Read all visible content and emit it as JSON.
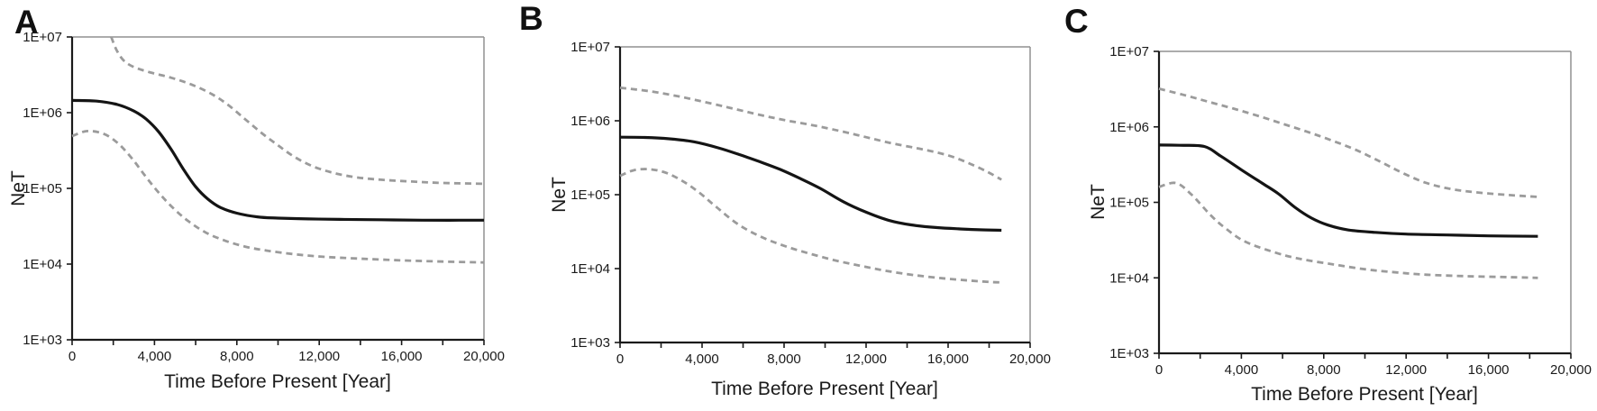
{
  "colors": {
    "background": "#ffffff",
    "median_line": "#141414",
    "ci_line": "#9b9b9b",
    "axis": "#1a1a1a",
    "frame": "#909090",
    "text": "#1a1a1a"
  },
  "chart_data": [
    {
      "type": "line",
      "panel_label": "A",
      "xlabel": "Time Before Present [Year]",
      "ylabel": "NeT",
      "xlim": [
        0,
        20000
      ],
      "ylim": [
        1000,
        10000000
      ],
      "yscale": "log",
      "grid": false,
      "legend": null,
      "x_tick_values": [
        0,
        4000,
        8000,
        12000,
        16000,
        20000
      ],
      "x_tick_labels": [
        "0",
        "4,000",
        "8,000",
        "12,000",
        "16,000",
        "20,000"
      ],
      "x_minor_tick_step": 2000,
      "y_tick_values": [
        1000,
        10000,
        100000,
        1000000,
        10000000
      ],
      "y_tick_labels": [
        "1E+03",
        "1E+04",
        "1E+05",
        "1E+06",
        "1E+07"
      ],
      "series": [
        {
          "name": "median",
          "style": "solid",
          "color": "#141414",
          "width": 3.2,
          "points": [
            [
              0,
              1450000
            ],
            [
              1200,
              1420000
            ],
            [
              2200,
              1280000
            ],
            [
              3000,
              1050000
            ],
            [
              3600,
              820000
            ],
            [
              4200,
              560000
            ],
            [
              4800,
              330000
            ],
            [
              5400,
              180000
            ],
            [
              6000,
              105000
            ],
            [
              6600,
              72000
            ],
            [
              7200,
              56000
            ],
            [
              8000,
              47000
            ],
            [
              9000,
              42000
            ],
            [
              10000,
              40500
            ],
            [
              11500,
              39500
            ],
            [
              13000,
              39000
            ],
            [
              15000,
              38500
            ],
            [
              17000,
              38000
            ],
            [
              20000,
              38000
            ]
          ]
        },
        {
          "name": "upper-95ci",
          "style": "dashed",
          "color": "#9b9b9b",
          "width": 2.8,
          "points": [
            [
              1900,
              10000000
            ],
            [
              2150,
              6800000
            ],
            [
              2500,
              4900000
            ],
            [
              3000,
              4000000
            ],
            [
              3800,
              3400000
            ],
            [
              4800,
              2900000
            ],
            [
              5800,
              2350000
            ],
            [
              6800,
              1750000
            ],
            [
              7600,
              1250000
            ],
            [
              8400,
              820000
            ],
            [
              9200,
              540000
            ],
            [
              10000,
              370000
            ],
            [
              10800,
              260000
            ],
            [
              11700,
              195000
            ],
            [
              12700,
              160000
            ],
            [
              13800,
              140000
            ],
            [
              15000,
              130000
            ],
            [
              16500,
              123000
            ],
            [
              18000,
              118000
            ],
            [
              20000,
              115000
            ]
          ]
        },
        {
          "name": "lower-95ci",
          "style": "dashed",
          "color": "#9b9b9b",
          "width": 2.8,
          "points": [
            [
              0,
              490000
            ],
            [
              700,
              570000
            ],
            [
              1500,
              530000
            ],
            [
              2200,
              400000
            ],
            [
              2900,
              250000
            ],
            [
              3600,
              140000
            ],
            [
              4300,
              82000
            ],
            [
              5000,
              52000
            ],
            [
              5700,
              36000
            ],
            [
              6500,
              26000
            ],
            [
              7400,
              20500
            ],
            [
              8400,
              17000
            ],
            [
              9500,
              15000
            ],
            [
              10800,
              13500
            ],
            [
              12200,
              12500
            ],
            [
              14000,
              11800
            ],
            [
              16000,
              11200
            ],
            [
              18000,
              10800
            ],
            [
              20000,
              10500
            ]
          ]
        }
      ]
    },
    {
      "type": "line",
      "panel_label": "B",
      "xlabel": "Time Before Present [Year]",
      "ylabel": "NeT",
      "xlim": [
        0,
        20000
      ],
      "ylim": [
        1000,
        10000000
      ],
      "yscale": "log",
      "grid": false,
      "legend": null,
      "x_tick_values": [
        0,
        4000,
        8000,
        12000,
        16000,
        20000
      ],
      "x_tick_labels": [
        "0",
        "4,000",
        "8,000",
        "12,000",
        "16,000",
        "20,000"
      ],
      "x_minor_tick_step": 2000,
      "y_tick_values": [
        1000,
        10000,
        100000,
        1000000,
        10000000
      ],
      "y_tick_labels": [
        "1E+03",
        "1E+04",
        "1E+05",
        "1E+06",
        "1E+07"
      ],
      "series": [
        {
          "name": "median",
          "style": "solid",
          "color": "#141414",
          "width": 3.2,
          "points": [
            [
              0,
              600000
            ],
            [
              1200,
              595000
            ],
            [
              2400,
              570000
            ],
            [
              3600,
              520000
            ],
            [
              4800,
              430000
            ],
            [
              5800,
              350000
            ],
            [
              6800,
              280000
            ],
            [
              7800,
              220000
            ],
            [
              8800,
              165000
            ],
            [
              9800,
              120000
            ],
            [
              10900,
              80000
            ],
            [
              12000,
              58000
            ],
            [
              13100,
              45000
            ],
            [
              14200,
              39000
            ],
            [
              15400,
              36000
            ],
            [
              16500,
              34500
            ],
            [
              17500,
              33500
            ],
            [
              18600,
              33000
            ]
          ]
        },
        {
          "name": "upper-95ci",
          "style": "dashed",
          "color": "#9b9b9b",
          "width": 2.8,
          "points": [
            [
              0,
              2800000
            ],
            [
              1500,
              2500000
            ],
            [
              3000,
              2100000
            ],
            [
              4500,
              1700000
            ],
            [
              5800,
              1400000
            ],
            [
              7000,
              1170000
            ],
            [
              8200,
              1000000
            ],
            [
              9500,
              860000
            ],
            [
              10800,
              720000
            ],
            [
              12000,
              600000
            ],
            [
              13200,
              500000
            ],
            [
              14400,
              430000
            ],
            [
              15500,
              370000
            ],
            [
              16300,
              320000
            ],
            [
              17100,
              260000
            ],
            [
              17900,
              205000
            ],
            [
              18600,
              160000
            ]
          ]
        },
        {
          "name": "lower-95ci",
          "style": "dashed",
          "color": "#9b9b9b",
          "width": 2.8,
          "points": [
            [
              0,
              180000
            ],
            [
              700,
              215000
            ],
            [
              1500,
              220000
            ],
            [
              2300,
              195000
            ],
            [
              3100,
              150000
            ],
            [
              3900,
              105000
            ],
            [
              4700,
              68000
            ],
            [
              5800,
              39000
            ],
            [
              7000,
              26000
            ],
            [
              8200,
              19500
            ],
            [
              9400,
              15500
            ],
            [
              10600,
              12700
            ],
            [
              11800,
              10800
            ],
            [
              13000,
              9300
            ],
            [
              14300,
              8200
            ],
            [
              15700,
              7400
            ],
            [
              17000,
              6900
            ],
            [
              18000,
              6600
            ],
            [
              18600,
              6500
            ]
          ]
        }
      ]
    },
    {
      "type": "line",
      "panel_label": "C",
      "xlabel": "Time Before Present [Year]",
      "ylabel": "NeT",
      "xlim": [
        0,
        20000
      ],
      "ylim": [
        1000,
        10000000
      ],
      "yscale": "log",
      "grid": false,
      "legend": null,
      "x_tick_values": [
        0,
        4000,
        8000,
        12000,
        16000,
        20000
      ],
      "x_tick_labels": [
        "0",
        "4,000",
        "8,000",
        "12,000",
        "16,000",
        "20,000"
      ],
      "x_minor_tick_step": 2000,
      "y_tick_values": [
        1000,
        10000,
        100000,
        1000000,
        10000000
      ],
      "y_tick_labels": [
        "1E+03",
        "1E+04",
        "1E+05",
        "1E+06",
        "1E+07"
      ],
      "series": [
        {
          "name": "median",
          "style": "solid",
          "color": "#141414",
          "width": 3.2,
          "points": [
            [
              0,
              575000
            ],
            [
              1000,
              570000
            ],
            [
              2200,
              550000
            ],
            [
              3000,
              410000
            ],
            [
              4000,
              270000
            ],
            [
              5000,
              180000
            ],
            [
              5800,
              130000
            ],
            [
              6600,
              86000
            ],
            [
              7400,
              62000
            ],
            [
              8200,
              50000
            ],
            [
              9200,
              43000
            ],
            [
              10500,
              40000
            ],
            [
              12000,
              38000
            ],
            [
              14000,
              37000
            ],
            [
              16000,
              36000
            ],
            [
              18400,
              35500
            ]
          ]
        },
        {
          "name": "upper-95ci",
          "style": "dashed",
          "color": "#9b9b9b",
          "width": 2.8,
          "points": [
            [
              0,
              3200000
            ],
            [
              1200,
              2650000
            ],
            [
              2400,
              2150000
            ],
            [
              3600,
              1750000
            ],
            [
              4800,
              1400000
            ],
            [
              6000,
              1100000
            ],
            [
              7200,
              860000
            ],
            [
              8400,
              660000
            ],
            [
              9600,
              490000
            ],
            [
              10800,
              340000
            ],
            [
              11900,
              240000
            ],
            [
              13000,
              180000
            ],
            [
              14200,
              150000
            ],
            [
              15500,
              135000
            ],
            [
              17000,
              125000
            ],
            [
              18400,
              118000
            ]
          ]
        },
        {
          "name": "lower-95ci",
          "style": "dashed",
          "color": "#9b9b9b",
          "width": 2.8,
          "points": [
            [
              0,
              160000
            ],
            [
              830,
              180000
            ],
            [
              1600,
              125000
            ],
            [
              2500,
              68000
            ],
            [
              3200,
              46000
            ],
            [
              4200,
              30000
            ],
            [
              5800,
              21000
            ],
            [
              7000,
              17500
            ],
            [
              8500,
              15000
            ],
            [
              10000,
              13000
            ],
            [
              11500,
              11800
            ],
            [
              13000,
              11000
            ],
            [
              15000,
              10500
            ],
            [
              17000,
              10200
            ],
            [
              18400,
              10000
            ]
          ]
        }
      ]
    }
  ]
}
